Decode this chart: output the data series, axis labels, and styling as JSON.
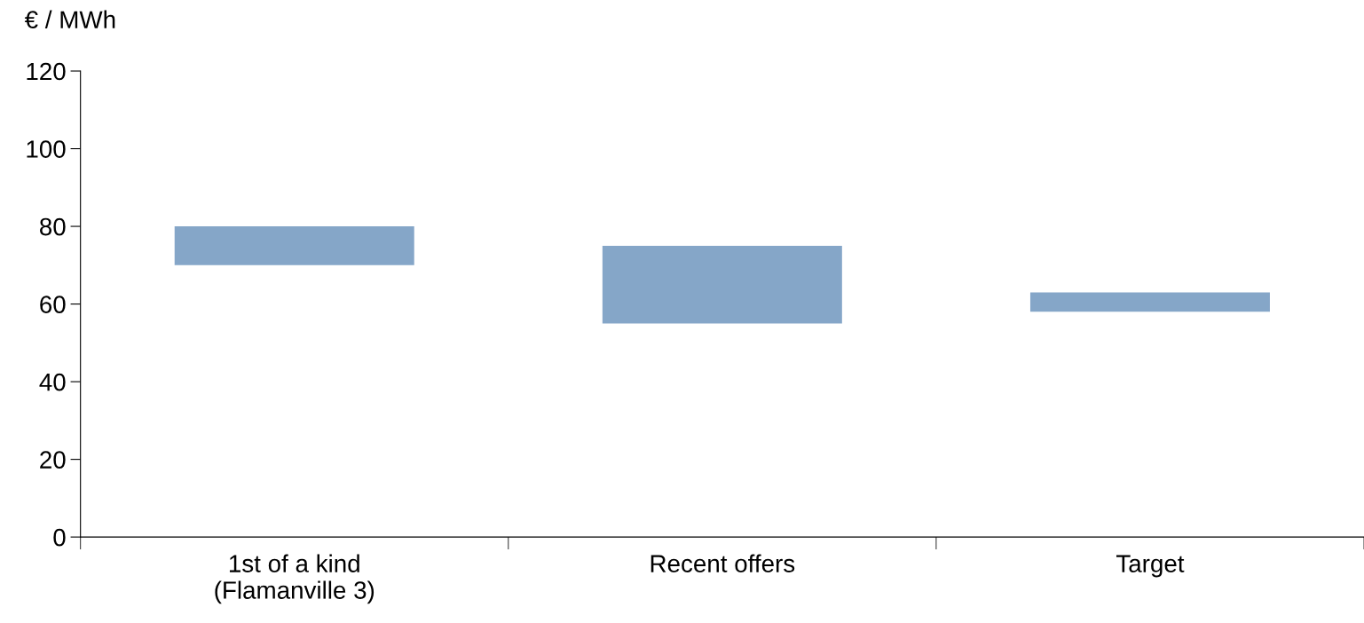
{
  "chart_data": {
    "type": "bar",
    "ylabel": "€ / MWh",
    "categories": [
      "1st of a kind\n(Flamanville 3)",
      "Recent offers",
      "Target"
    ],
    "base": [
      70,
      55,
      58
    ],
    "values": [
      10,
      20,
      5
    ],
    "color": "#85a6c8",
    "ylim": [
      0,
      120
    ],
    "yticks": [
      0,
      20,
      40,
      60,
      80,
      100,
      120
    ],
    "grid": false,
    "legend": false
  }
}
